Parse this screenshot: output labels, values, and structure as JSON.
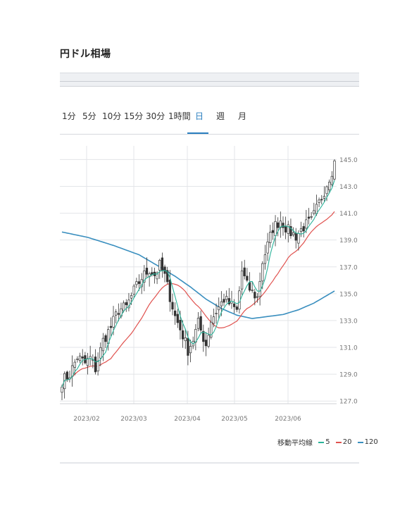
{
  "header": {
    "title": "円ドル相場"
  },
  "tabs": [
    {
      "label": "1分",
      "active": false
    },
    {
      "label": "5分",
      "active": false
    },
    {
      "label": "10分",
      "active": false
    },
    {
      "label": "15分",
      "active": false
    },
    {
      "label": "30分",
      "active": false
    },
    {
      "label": "1時間",
      "active": false
    },
    {
      "label": "日",
      "active": true
    },
    {
      "label": "週",
      "active": false
    },
    {
      "label": "月",
      "active": false
    }
  ],
  "legend": {
    "label": "移動平均線",
    "items": [
      {
        "name": "5",
        "color": "#2bb39a"
      },
      {
        "name": "20",
        "color": "#e0524f"
      },
      {
        "name": "120",
        "color": "#3a8fbf"
      }
    ]
  },
  "chart_data": {
    "type": "candlestick",
    "title": "",
    "xlabel": "",
    "ylabel": "",
    "ylim": [
      126.8,
      145.6
    ],
    "y_ticks": [
      "145.0",
      "143.0",
      "141.0",
      "139.0",
      "137.0",
      "135.0",
      "133.0",
      "131.0",
      "129.0",
      "127.0"
    ],
    "x_ticks": [
      "2023/02",
      "2023/03",
      "2023/04",
      "2023/05",
      "2023/06"
    ],
    "grid": true,
    "candle_color": "#333333",
    "close_path": [
      [
        0,
        128.5
      ],
      [
        3,
        129.0
      ],
      [
        6,
        130.3
      ],
      [
        9,
        129.8
      ],
      [
        11,
        130.2
      ],
      [
        13,
        129.4
      ],
      [
        16,
        131.5
      ],
      [
        19,
        132.5
      ],
      [
        22,
        133.8
      ],
      [
        25,
        134.0
      ],
      [
        28,
        135.2
      ],
      [
        31,
        136.2
      ],
      [
        34,
        136.8
      ],
      [
        36,
        136.4
      ],
      [
        38,
        137.1
      ],
      [
        40,
        136.3
      ],
      [
        42,
        134.8
      ],
      [
        44,
        133.3
      ],
      [
        47,
        131.9
      ],
      [
        49,
        130.8
      ],
      [
        51,
        131.6
      ],
      [
        53,
        132.8
      ],
      [
        56,
        131.2
      ],
      [
        58,
        133.0
      ],
      [
        60,
        133.7
      ],
      [
        63,
        134.6
      ],
      [
        66,
        134.1
      ],
      [
        68,
        133.7
      ],
      [
        70,
        136.7
      ],
      [
        72,
        135.6
      ],
      [
        74,
        135.1
      ],
      [
        76,
        134.7
      ],
      [
        78,
        137.4
      ],
      [
        80,
        138.6
      ],
      [
        82,
        139.9
      ],
      [
        85,
        140.5
      ],
      [
        88,
        139.7
      ],
      [
        91,
        139.3
      ],
      [
        94,
        140.0
      ],
      [
        97,
        140.4
      ],
      [
        99,
        141.3
      ],
      [
        101,
        142.2
      ],
      [
        103,
        143.2
      ],
      [
        105,
        144.2
      ],
      [
        106,
        144.8
      ]
    ],
    "ma_periods": [
      5,
      20,
      120
    ],
    "ma120_path": [
      [
        0,
        139.6
      ],
      [
        10,
        139.2
      ],
      [
        20,
        138.6
      ],
      [
        30,
        137.9
      ],
      [
        38,
        137.0
      ],
      [
        44,
        136.3
      ],
      [
        50,
        135.5
      ],
      [
        56,
        134.6
      ],
      [
        62,
        133.9
      ],
      [
        68,
        133.4
      ],
      [
        74,
        133.15
      ],
      [
        80,
        133.3
      ],
      [
        86,
        133.45
      ],
      [
        92,
        133.8
      ],
      [
        98,
        134.3
      ],
      [
        106,
        135.2
      ]
    ]
  }
}
